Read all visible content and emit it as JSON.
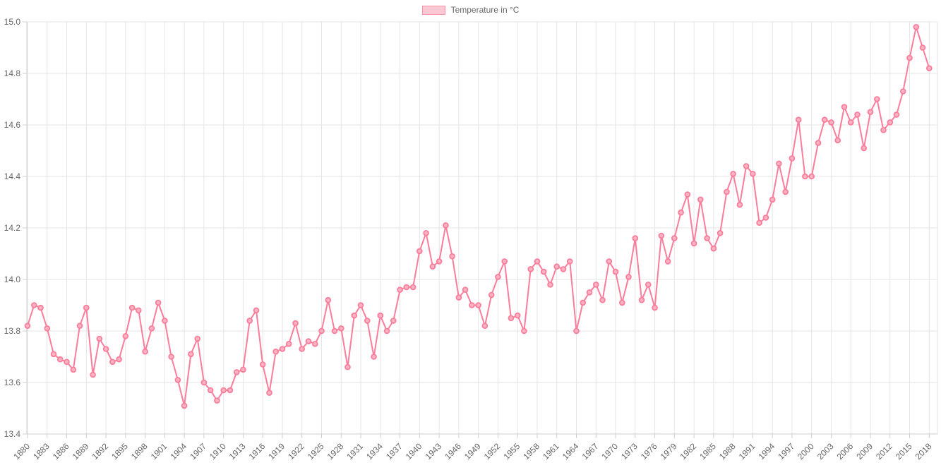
{
  "legend": {
    "label": "Temperature in °C"
  },
  "chart_data": {
    "type": "line",
    "title": "",
    "series_name": "Temperature in °C",
    "xlabel": "",
    "ylabel": "",
    "ylim": [
      13.4,
      15.0
    ],
    "ytick_step": 0.2,
    "y_tick_labels": [
      "15.0",
      "14.8",
      "14.6",
      "14.4",
      "14.2",
      "14.0",
      "13.8",
      "13.6",
      "13.4"
    ],
    "xtick_every": 3,
    "x_tick_labels": [
      "1880",
      "1883",
      "1886",
      "1889",
      "1892",
      "1895",
      "1898",
      "1901",
      "1904",
      "1907",
      "1910",
      "1913",
      "1916",
      "1919",
      "1922",
      "1925",
      "1928",
      "1931",
      "1934",
      "1937",
      "1940",
      "1943",
      "1946",
      "1949",
      "1952",
      "1955",
      "1958",
      "1961",
      "1964",
      "1967",
      "1970",
      "1973",
      "1976",
      "1979",
      "1982",
      "1985",
      "1988",
      "1991",
      "1994",
      "1997",
      "2000",
      "2003",
      "2006",
      "2009",
      "2012",
      "2015",
      "2018"
    ],
    "grid": true,
    "legend_position": "top",
    "x": [
      1880,
      1881,
      1882,
      1883,
      1884,
      1885,
      1886,
      1887,
      1888,
      1889,
      1890,
      1891,
      1892,
      1893,
      1894,
      1895,
      1896,
      1897,
      1898,
      1899,
      1900,
      1901,
      1902,
      1903,
      1904,
      1905,
      1906,
      1907,
      1908,
      1909,
      1910,
      1911,
      1912,
      1913,
      1914,
      1915,
      1916,
      1917,
      1918,
      1919,
      1920,
      1921,
      1922,
      1923,
      1924,
      1925,
      1926,
      1927,
      1928,
      1929,
      1930,
      1931,
      1932,
      1933,
      1934,
      1935,
      1936,
      1937,
      1938,
      1939,
      1940,
      1941,
      1942,
      1943,
      1944,
      1945,
      1946,
      1947,
      1948,
      1949,
      1950,
      1951,
      1952,
      1953,
      1954,
      1955,
      1956,
      1957,
      1958,
      1959,
      1960,
      1961,
      1962,
      1963,
      1964,
      1965,
      1966,
      1967,
      1968,
      1969,
      1970,
      1971,
      1972,
      1973,
      1974,
      1975,
      1976,
      1977,
      1978,
      1979,
      1980,
      1981,
      1982,
      1983,
      1984,
      1985,
      1986,
      1987,
      1988,
      1989,
      1990,
      1991,
      1992,
      1993,
      1994,
      1995,
      1996,
      1997,
      1998,
      1999,
      2000,
      2001,
      2002,
      2003,
      2004,
      2005,
      2006,
      2007,
      2008,
      2009,
      2010,
      2011,
      2012,
      2013,
      2014,
      2015,
      2016,
      2017,
      2018
    ],
    "values": [
      13.82,
      13.9,
      13.89,
      13.81,
      13.71,
      13.69,
      13.68,
      13.65,
      13.82,
      13.89,
      13.63,
      13.77,
      13.73,
      13.68,
      13.69,
      13.78,
      13.89,
      13.88,
      13.72,
      13.81,
      13.91,
      13.84,
      13.7,
      13.61,
      13.51,
      13.71,
      13.77,
      13.6,
      13.57,
      13.53,
      13.57,
      13.57,
      13.64,
      13.65,
      13.84,
      13.88,
      13.67,
      13.56,
      13.72,
      13.73,
      13.75,
      13.83,
      13.73,
      13.76,
      13.75,
      13.8,
      13.92,
      13.8,
      13.81,
      13.66,
      13.86,
      13.9,
      13.84,
      13.7,
      13.86,
      13.8,
      13.84,
      13.96,
      13.97,
      13.97,
      14.11,
      14.18,
      14.05,
      14.07,
      14.21,
      14.09,
      13.93,
      13.96,
      13.9,
      13.9,
      13.82,
      13.94,
      14.01,
      14.07,
      13.85,
      13.86,
      13.8,
      14.04,
      14.07,
      14.03,
      13.98,
      14.05,
      14.04,
      14.07,
      13.8,
      13.91,
      13.95,
      13.98,
      13.92,
      14.07,
      14.03,
      13.91,
      14.01,
      14.16,
      13.92,
      13.98,
      13.89,
      14.17,
      14.07,
      14.16,
      14.26,
      14.33,
      14.14,
      14.31,
      14.16,
      14.12,
      14.18,
      14.34,
      14.41,
      14.29,
      14.44,
      14.41,
      14.22,
      14.24,
      14.31,
      14.45,
      14.34,
      14.47,
      14.62,
      14.4,
      14.4,
      14.53,
      14.62,
      14.61,
      14.54,
      14.67,
      14.61,
      14.64,
      14.51,
      14.65,
      14.7,
      14.58,
      14.61,
      14.64,
      14.73,
      14.86,
      14.98,
      14.9,
      14.82
    ],
    "colors": {
      "line": "#fa7d9b",
      "point_fill": "#fbb3c2",
      "point_border": "#fa7d9b",
      "legend_fill": "#fcc8d3",
      "legend_border": "#fa92a8",
      "grid": "#e5e5e5",
      "axis_border": "#cfcfcf",
      "tick_text": "#666666"
    }
  }
}
